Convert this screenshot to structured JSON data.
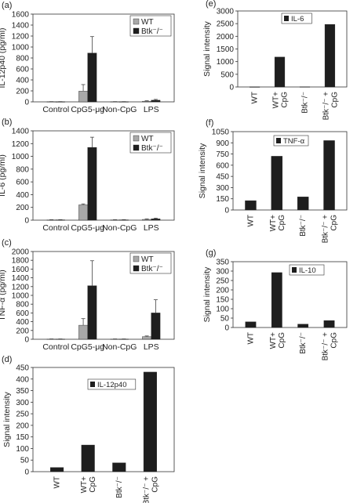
{
  "chart_data": [
    {
      "panel": "(a)",
      "type": "bar",
      "ylabel": "IL-12p40 (pg/ml)",
      "ylim": [
        0,
        1600
      ],
      "yticks": [
        "0",
        "200",
        "400",
        "600",
        "800",
        "1000",
        "1200",
        "1400",
        "1600"
      ],
      "categories": [
        "Control",
        "CpG5-μg",
        "Non-CpG",
        "LPS"
      ],
      "legend": {
        "placement": "top-right",
        "entries": [
          "WT",
          "Btk⁻/⁻"
        ]
      },
      "series": [
        {
          "name": "WT",
          "values": [
            3,
            195,
            3,
            12
          ],
          "errors": [
            2,
            120,
            2,
            8
          ],
          "color": "#a8a8a8"
        },
        {
          "name": "Btk⁻/⁻",
          "values": [
            3,
            890,
            3,
            30
          ],
          "errors": [
            2,
            300,
            2,
            15
          ],
          "color": "#1e1e1e"
        }
      ]
    },
    {
      "panel": "(b)",
      "type": "bar",
      "ylabel": "IL-6 (pg/ml)",
      "ylim": [
        0,
        1400
      ],
      "yticks": [
        "0",
        "200",
        "400",
        "600",
        "800",
        "1000",
        "1200",
        "1400"
      ],
      "categories": [
        "Control",
        "CpG5-μg",
        "Non-CpG",
        "LPS"
      ],
      "legend": {
        "placement": "top-right",
        "entries": [
          "WT",
          "Btk⁻/⁻"
        ]
      },
      "series": [
        {
          "name": "WT",
          "values": [
            5,
            240,
            5,
            12
          ],
          "errors": [
            3,
            15,
            3,
            8
          ],
          "color": "#a8a8a8"
        },
        {
          "name": "Btk⁻/⁻",
          "values": [
            5,
            1140,
            5,
            20
          ],
          "errors": [
            3,
            160,
            3,
            12
          ],
          "color": "#1e1e1e"
        }
      ]
    },
    {
      "panel": "(c)",
      "type": "bar",
      "ylabel": "TNF-α (pg/ml)",
      "ylim": [
        0,
        2000
      ],
      "yticks": [
        "0",
        "200",
        "400",
        "600",
        "800",
        "1000",
        "1200",
        "1400",
        "1600",
        "1800",
        "2000"
      ],
      "categories": [
        "Control",
        "CpG5-μg",
        "Non-CpG",
        "LPS"
      ],
      "legend": {
        "placement": "top-right",
        "entries": [
          "WT",
          "Btk⁻/⁻"
        ]
      },
      "series": [
        {
          "name": "WT",
          "values": [
            5,
            320,
            5,
            60
          ],
          "errors": [
            3,
            150,
            3,
            15
          ],
          "color": "#a8a8a8"
        },
        {
          "name": "Btk⁻/⁻",
          "values": [
            5,
            1220,
            5,
            600
          ],
          "errors": [
            3,
            570,
            3,
            300
          ],
          "color": "#1e1e1e"
        }
      ]
    },
    {
      "panel": "(d)",
      "type": "bar",
      "ylabel": "Signal intensity",
      "ylim": [
        0,
        450
      ],
      "yticks": [
        "0",
        "50",
        "100",
        "150",
        "200",
        "250",
        "300",
        "350",
        "400",
        "450"
      ],
      "categories": [
        "WT",
        "WT+\nCpG",
        "Btk⁻/⁻",
        "Btk⁻/⁻ +\nCpG"
      ],
      "legend": {
        "placement": "top-center",
        "entries": [
          "IL-12p40"
        ]
      },
      "series": [
        {
          "name": "IL-12p40",
          "values": [
            18,
            115,
            38,
            430
          ],
          "color": "#1e1e1e"
        }
      ]
    },
    {
      "panel": "(e)",
      "type": "bar",
      "ylabel": "Signal intensity",
      "ylim": [
        0,
        3000
      ],
      "yticks": [
        "0",
        "500",
        "1000",
        "1500",
        "2000",
        "2500",
        "3000"
      ],
      "categories": [
        "WT",
        "WT+\nCpG",
        "Btk⁻/⁻",
        "Btk⁻/⁻ +\nCpG"
      ],
      "legend": {
        "placement": "top-center",
        "entries": [
          "IL-6"
        ]
      },
      "series": [
        {
          "name": "IL-6",
          "values": [
            5,
            1180,
            8,
            2470
          ],
          "color": "#1e1e1e"
        }
      ]
    },
    {
      "panel": "(f)",
      "type": "bar",
      "ylabel": "Signal intensity",
      "ylim": [
        0,
        1050
      ],
      "yticks": [
        "0",
        "150",
        "300",
        "450",
        "600",
        "750",
        "900",
        "1050"
      ],
      "categories": [
        "WT",
        "WT+\nCpG",
        "Btk⁻/⁻",
        "Btk⁻/⁻ +\nCpG"
      ],
      "legend": {
        "placement": "top-center",
        "entries": [
          "TNF-α"
        ]
      },
      "series": [
        {
          "name": "TNF-α",
          "values": [
            125,
            720,
            175,
            930
          ],
          "color": "#1e1e1e"
        }
      ]
    },
    {
      "panel": "(g)",
      "type": "bar",
      "ylabel": "Signal intensity",
      "ylim": [
        0,
        350
      ],
      "yticks": [
        "0",
        "50",
        "100",
        "150",
        "200",
        "250",
        "300",
        "350"
      ],
      "categories": [
        "WT",
        "WT+\nCpG",
        "Btk⁻/⁻",
        "Btk⁻/⁻ +\nCpG"
      ],
      "legend": {
        "placement": "top-center",
        "entries": [
          "IL-10"
        ]
      },
      "series": [
        {
          "name": "IL-10",
          "values": [
            30,
            292,
            18,
            37
          ],
          "color": "#1e1e1e"
        }
      ]
    }
  ]
}
